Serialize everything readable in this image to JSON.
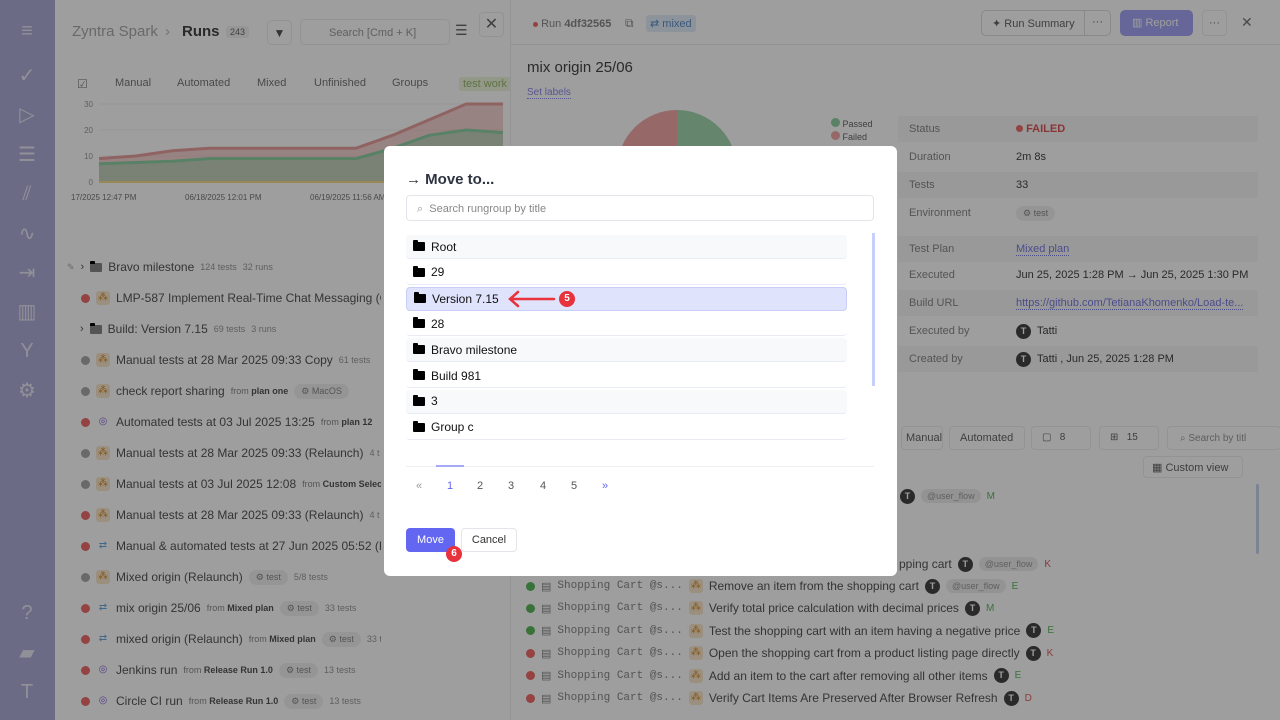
{
  "sidebar": {
    "items": [
      "menu-icon",
      "check-icon",
      "play-icon",
      "list-check-icon",
      "steps-icon",
      "pulse-icon",
      "import-icon",
      "chart-icon",
      "branch-icon",
      "gear-icon",
      "help-icon",
      "folders-icon",
      "avatar-icon"
    ]
  },
  "left": {
    "project": "Zyntra Spark",
    "page": "Runs",
    "count": "243",
    "search_placeholder": "Search [Cmd + K]",
    "tabs": [
      "Manual",
      "Automated",
      "Mixed",
      "Unfinished",
      "Groups",
      "test work"
    ],
    "chart": {
      "type": "area",
      "y_ticks": [
        "0",
        "10",
        "20",
        "30"
      ],
      "x_labels": [
        "17/2025 12:47 PM",
        "06/18/2025 12:01 PM",
        "06/19/2025 11:56 AM"
      ],
      "series": [
        {
          "color": "#e8a0a0",
          "values": [
            9,
            10,
            12,
            13,
            13,
            13,
            13,
            13,
            18,
            24,
            30,
            30
          ]
        },
        {
          "color": "#8fd1a5",
          "values": [
            7,
            7.5,
            8,
            9,
            9,
            9,
            9,
            9,
            13,
            18,
            20,
            19
          ]
        }
      ]
    },
    "groups": [
      {
        "title": "Bravo milestone",
        "tests": "124 tests",
        "runs": "32 runs"
      },
      {
        "title": "Build: Version 7.15",
        "tests": "69 tests",
        "runs": "3 runs"
      }
    ],
    "runs": [
      {
        "status": "failed",
        "type": "manual",
        "title": "LMP-587 Implement Real-Time Chat Messaging (C"
      },
      {
        "status": "unfinished",
        "type": "manual",
        "title": "Manual tests at 28 Mar 2025 09:33 Copy",
        "meta": "61 tests"
      },
      {
        "status": "unfinished",
        "type": "manual",
        "title": "check report sharing",
        "from": "plan one",
        "env": "MacOS"
      },
      {
        "status": "failed",
        "type": "auto",
        "title": "Automated tests at 03 Jul 2025 13:25",
        "from": "plan 12"
      },
      {
        "status": "unfinished",
        "type": "manual",
        "title": "Manual tests at 28 Mar 2025 09:33 (Relaunch)",
        "meta": "4 t"
      },
      {
        "status": "unfinished",
        "type": "manual",
        "title": "Manual tests at 03 Jul 2025 12:08",
        "from": "Custom Selecti"
      },
      {
        "status": "failed",
        "type": "manual",
        "title": "Manual tests at 28 Mar 2025 09:33 (Relaunch)",
        "meta": "4 t"
      },
      {
        "status": "failed",
        "type": "mix",
        "title": "Manual & automated tests at 27 Jun 2025 05:52 (R"
      },
      {
        "status": "unfinished",
        "type": "manual",
        "title": "Mixed origin (Relaunch)",
        "env": "test",
        "meta": "5/8 tests"
      },
      {
        "status": "failed",
        "type": "mix",
        "title": "mix origin 25/06",
        "from": "Mixed plan",
        "env": "test",
        "meta": "33 tests"
      },
      {
        "status": "failed",
        "type": "mix",
        "title": "mixed origin (Relaunch)",
        "from": "Mixed plan",
        "env": "test",
        "meta": "33 tests"
      },
      {
        "status": "failed",
        "type": "auto",
        "title": "Jenkins run",
        "from": "Release Run 1.0",
        "env": "test",
        "meta": "13 tests"
      },
      {
        "status": "failed",
        "type": "auto",
        "title": "Circle CI run",
        "from": "Release Run 1.0",
        "env": "test",
        "meta": "13 tests"
      }
    ],
    "from_label": "from"
  },
  "right": {
    "run_label": "Run",
    "run_id": "4df32565",
    "origin": "mixed",
    "run_summary": "Run Summary",
    "report": "Report",
    "title": "mix origin 25/06",
    "set_labels": "Set labels",
    "legend": [
      "Passed",
      "Failed"
    ],
    "details": [
      {
        "k": "Status",
        "v": "FAILED"
      },
      {
        "k": "Duration",
        "v": "2m 8s"
      },
      {
        "k": "Tests",
        "v": "33"
      },
      {
        "k": "Environment",
        "v": "test"
      },
      {
        "k": "Test Plan",
        "v": "Mixed plan"
      },
      {
        "k": "Executed",
        "v": "Jun 25, 2025 1:28 PM → Jun 25, 2025 1:30 PM"
      },
      {
        "k": "Build URL",
        "v": "https://github.com/TetianaKhomenko/Load-te..."
      },
      {
        "k": "Executed by",
        "v": "Tatti"
      },
      {
        "k": "Created by",
        "v": "Tatti , Jun 25, 2025 1:28 PM"
      }
    ],
    "filters": {
      "manual": "Manual",
      "automated": "Automated",
      "c1": "8",
      "c2": "15",
      "search": "Search by titl",
      "custom_view": "Custom view"
    },
    "tests": [
      {
        "status": "passed",
        "suite": "Shopping Cart @s...",
        "title": "Remove an item from the shopping cart",
        "tag": "@user_flow",
        "pri": "E"
      },
      {
        "status": "passed",
        "suite": "Shopping Cart @s...",
        "title": "Verify total price calculation with decimal prices",
        "pri": "M"
      },
      {
        "status": "passed",
        "suite": "Shopping Cart @s...",
        "title": "Test the shopping cart with an item having a negative price",
        "pri": "E"
      },
      {
        "status": "failed",
        "suite": "Shopping Cart @s...",
        "title": "Open the shopping cart from a product listing page directly",
        "pri": "K"
      },
      {
        "status": "failed",
        "suite": "Shopping Cart @s...",
        "title": "Add an item to the cart after removing all other items",
        "pri": "E"
      },
      {
        "status": "failed",
        "suite": "Shopping Cart @s...",
        "title": "Verify Cart Items Are Preserved After Browser Refresh",
        "pri": "D"
      }
    ],
    "partial": [
      {
        "tag": "@user_flow",
        "pri": "M"
      },
      {
        "title": "pping cart",
        "tag": "@user_flow",
        "pri": "K"
      }
    ]
  },
  "modal": {
    "title": "Move to...",
    "search_placeholder": "Search rungroup by title",
    "items": [
      "Root",
      "29",
      "Version 7.15",
      "28",
      "Bravo milestone",
      "Build 981",
      "3",
      "Group c"
    ],
    "selected": "Version 7.15",
    "pages": [
      "«",
      "1",
      "2",
      "3",
      "4",
      "5",
      "»"
    ],
    "current_page": "1",
    "move": "Move",
    "cancel": "Cancel",
    "step5": "5",
    "step6": "6",
    "accent": "#6366f1"
  }
}
